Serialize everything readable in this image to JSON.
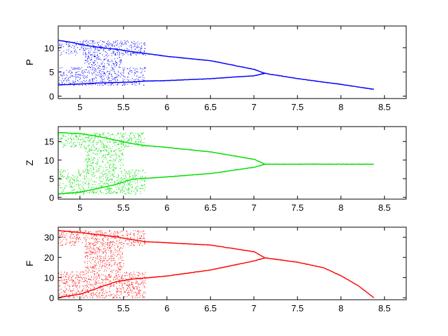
{
  "chart_data": [
    {
      "type": "scatter",
      "ylabel": "P",
      "xlabel": "",
      "title": "",
      "xlim": [
        4.75,
        8.75
      ],
      "ylim": [
        -0.5,
        14.5
      ],
      "xticks": [
        "5",
        "5.5",
        "6",
        "6.5",
        "7",
        "7.5",
        "8",
        "8.5"
      ],
      "yticks": [
        "0",
        "5",
        "10"
      ],
      "color": "#0000ff",
      "grid": false,
      "series": [
        {
          "branches": [
            {
              "x": [
                4.75,
                4.9,
                5.05,
                5.2,
                5.4,
                5.55,
                5.75,
                6.0,
                6.5,
                7.0,
                7.12,
                7.5,
                8.0,
                8.37
              ],
              "y": [
                11.6,
                11.2,
                10.6,
                10.2,
                9.8,
                9.4,
                8.9,
                8.3,
                7.4,
                5.6,
                4.8,
                3.7,
                2.5,
                1.5
              ]
            },
            {
              "x": [
                4.75,
                5.0,
                5.2,
                5.4,
                5.6,
                5.75,
                6.0,
                6.5,
                7.0,
                7.12
              ],
              "y": [
                2.4,
                2.6,
                2.8,
                2.9,
                3.0,
                3.2,
                3.3,
                3.7,
                4.3,
                4.8
              ]
            }
          ],
          "chaotic_bands": [
            {
              "x_from": 4.75,
              "x_to": 5.75,
              "y_ranges": [
                [
                  8.5,
                  11.6
                ],
                [
                  2.3,
                  6.0
                ]
              ]
            },
            {
              "x_from": 5.05,
              "x_to": 5.5,
              "y_ranges": [
                [
                  6.0,
                  8.5
                ]
              ]
            }
          ]
        }
      ]
    },
    {
      "type": "scatter",
      "ylabel": "Z",
      "xlabel": "",
      "title": "",
      "xlim": [
        4.75,
        8.75
      ],
      "ylim": [
        -0.5,
        19.0
      ],
      "xticks": [
        "5",
        "5.5",
        "6",
        "6.5",
        "7",
        "7.5",
        "8",
        "8.5"
      ],
      "yticks": [
        "0",
        "5",
        "10",
        "15"
      ],
      "color": "#00dd00",
      "grid": false,
      "series": [
        {
          "branches": [
            {
              "x": [
                4.75,
                5.0,
                5.2,
                5.4,
                5.6,
                5.75,
                6.0,
                6.5,
                7.0,
                7.12
              ],
              "y": [
                17.5,
                17.2,
                16.5,
                15.5,
                14.5,
                14.0,
                13.5,
                12.3,
                10.3,
                9.0
              ]
            },
            {
              "x": [
                4.75,
                5.0,
                5.2,
                5.4,
                5.6,
                5.75,
                6.0,
                6.5,
                7.0,
                7.12
              ],
              "y": [
                1.0,
                1.5,
                2.5,
                3.5,
                5.0,
                5.2,
                5.6,
                6.5,
                8.2,
                9.0
              ]
            },
            {
              "x": [
                7.12,
                7.5,
                8.0,
                8.37
              ],
              "y": [
                9.0,
                9.0,
                9.0,
                9.0
              ]
            }
          ],
          "chaotic_bands": [
            {
              "x_from": 4.75,
              "x_to": 5.75,
              "y_ranges": [
                [
                  13.5,
                  17.5
                ],
                [
                  0.8,
                  7.5
                ]
              ]
            },
            {
              "x_from": 5.05,
              "x_to": 5.5,
              "y_ranges": [
                [
                  7.5,
                  13.5
                ]
              ]
            }
          ]
        }
      ]
    },
    {
      "type": "scatter",
      "ylabel": "F",
      "xlabel": "",
      "title": "",
      "xlim": [
        4.75,
        8.75
      ],
      "ylim": [
        -1.0,
        35.0
      ],
      "xticks": [
        "5",
        "5.5",
        "6",
        "6.5",
        "7",
        "7.5",
        "8",
        "8.5"
      ],
      "yticks": [
        "0",
        "10",
        "20",
        "30"
      ],
      "color": "#ff0000",
      "grid": false,
      "series": [
        {
          "branches": [
            {
              "x": [
                4.75,
                5.0,
                5.2,
                5.4,
                5.6,
                5.75,
                6.0,
                6.5,
                7.0,
                7.12,
                7.5,
                7.8,
                8.0,
                8.2,
                8.37
              ],
              "y": [
                33.5,
                32.5,
                31.5,
                30.5,
                29.0,
                28.0,
                27.5,
                26.3,
                23.0,
                20.0,
                17.8,
                15.0,
                11.0,
                6.0,
                0.3
              ]
            },
            {
              "x": [
                4.75,
                5.0,
                5.2,
                5.4,
                5.6,
                5.75,
                6.0,
                6.5,
                7.0,
                7.12
              ],
              "y": [
                0.3,
                2.0,
                5.0,
                8.0,
                9.5,
                10.0,
                11.0,
                14.0,
                18.5,
                20.0
              ]
            }
          ],
          "chaotic_bands": [
            {
              "x_from": 4.75,
              "x_to": 5.75,
              "y_ranges": [
                [
                  26.0,
                  33.5
                ],
                [
                  0.0,
                  13.0
                ]
              ]
            },
            {
              "x_from": 5.05,
              "x_to": 5.5,
              "y_ranges": [
                [
                  13.0,
                  26.0
                ]
              ]
            }
          ]
        }
      ]
    }
  ]
}
